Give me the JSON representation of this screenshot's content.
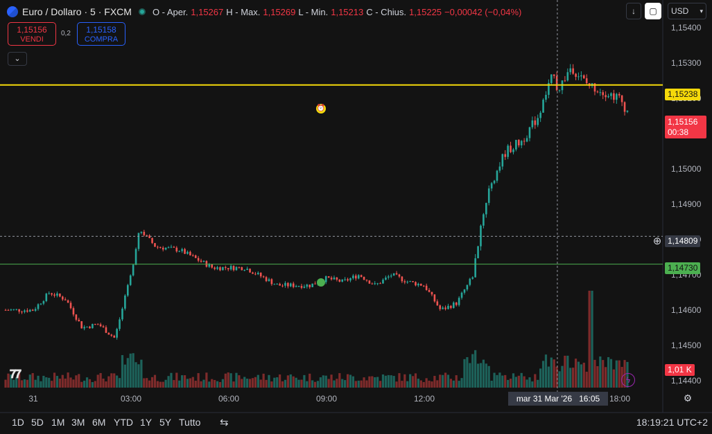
{
  "header": {
    "symbol": "Euro / Dollaro · 5 · FXCM",
    "open_label": "O - Aper.",
    "open": "1,15267",
    "high_label": "H - Max.",
    "high": "1,15269",
    "low_label": "L - Min.",
    "low": "1,15213",
    "close_label": "C - Chius.",
    "close": "1,15225",
    "change": "−0,00042 (−0,04%)"
  },
  "trade": {
    "sell_price": "1,15156",
    "sell_label": "VENDI",
    "spread": "0,2",
    "buy_price": "1,15158",
    "buy_label": "COMPRA"
  },
  "toolbar": {
    "currency": "USD"
  },
  "price_tags": {
    "yellow_line": "1,15238",
    "current": "1,15156",
    "countdown": "00:38",
    "crosshair": "1,14809",
    "green_line": "1,14730",
    "volume": "1,01 K"
  },
  "crosshair_time": "mar 31 Mar '26   16:05",
  "yaxis": [
    "1,15400",
    "1,15300",
    "1,15200",
    "1,15100",
    "1,15000",
    "1,14900",
    "1,14800",
    "1,14700",
    "1,14600",
    "1,14500",
    "1,14400"
  ],
  "xaxis": [
    "31",
    "03:00",
    "06:00",
    "09:00",
    "12:00",
    "18:00"
  ],
  "ranges": [
    "1D",
    "5D",
    "1M",
    "3M",
    "6M",
    "YTD",
    "1Y",
    "5Y",
    "Tutto"
  ],
  "clock": "18:19:21",
  "timezone": "UTC+2",
  "colors": {
    "up": "#26a69a",
    "down": "#ef5350",
    "yellow_line": "#f5d90a",
    "green_line": "#4caf50",
    "background": "#131313"
  },
  "chart_data": {
    "type": "candlestick",
    "interval": "5m",
    "ylim": [
      1.1438,
      1.1542
    ],
    "anchors_time": [
      "00:00",
      "00:30",
      "01:00",
      "01:30",
      "02:00",
      "02:30",
      "03:00",
      "03:15",
      "03:45",
      "04:30",
      "05:30",
      "06:30",
      "07:30",
      "08:30",
      "09:00",
      "09:30",
      "10:00",
      "10:30",
      "11:00",
      "11:30",
      "12:00",
      "12:30",
      "13:00",
      "13:30",
      "13:45",
      "14:00",
      "14:30",
      "15:00",
      "15:30",
      "16:00",
      "16:05",
      "16:30",
      "17:00",
      "17:30",
      "18:00",
      "18:15"
    ],
    "anchors_price": [
      1.146,
      1.1465,
      1.1463,
      1.1455,
      1.1456,
      1.1452,
      1.147,
      1.1483,
      1.1478,
      1.1477,
      1.1472,
      1.1472,
      1.1467,
      1.1467,
      1.1469,
      1.1468,
      1.147,
      1.1467,
      1.147,
      1.1468,
      1.1467,
      1.146,
      1.1462,
      1.147,
      1.1485,
      1.1495,
      1.1505,
      1.1508,
      1.1515,
      1.1528,
      1.1522,
      1.1529,
      1.1524,
      1.1522,
      1.152,
      1.1516
    ],
    "horizontal_lines": [
      1.15238,
      1.1473
    ],
    "crosshair_price": 1.14809
  }
}
